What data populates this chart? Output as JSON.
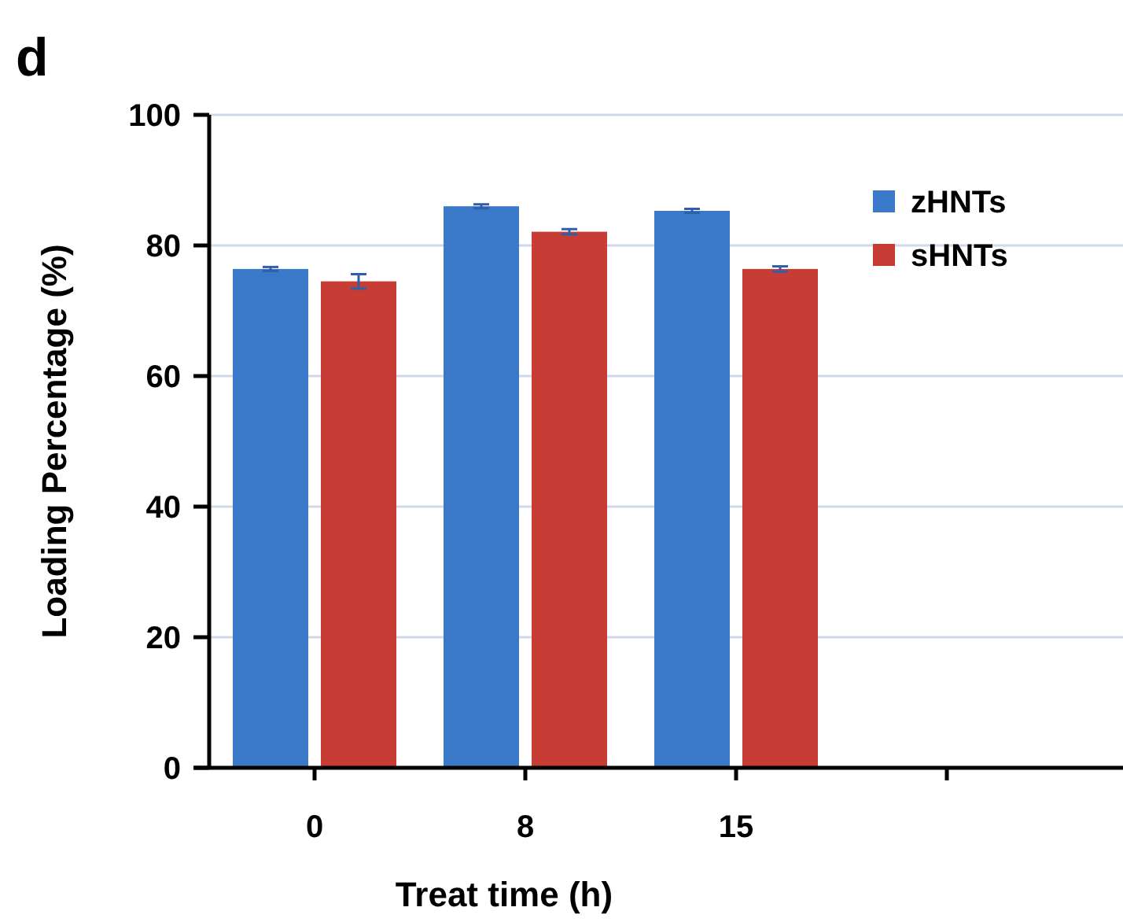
{
  "chart_data": {
    "type": "bar",
    "title": "d",
    "xlabel": "Treat time (h)",
    "ylabel": "Loading Percentage (%)",
    "categories": [
      "0",
      "8",
      "15",
      null
    ],
    "series": [
      {
        "name": "zHNTs",
        "color": "#3a78c8",
        "values": [
          76.4,
          86.0,
          85.3,
          null
        ],
        "errors": [
          0.3,
          0.3,
          0.3,
          null
        ]
      },
      {
        "name": "sHNTs",
        "color": "#c83c36",
        "values": [
          74.5,
          82.1,
          76.4,
          null
        ],
        "errors": [
          1.1,
          0.4,
          0.4,
          null
        ]
      }
    ],
    "ylim": [
      0,
      100
    ],
    "yticks": [
      0,
      20,
      40,
      60,
      80,
      100
    ],
    "grid": "y",
    "legend": "top right"
  }
}
